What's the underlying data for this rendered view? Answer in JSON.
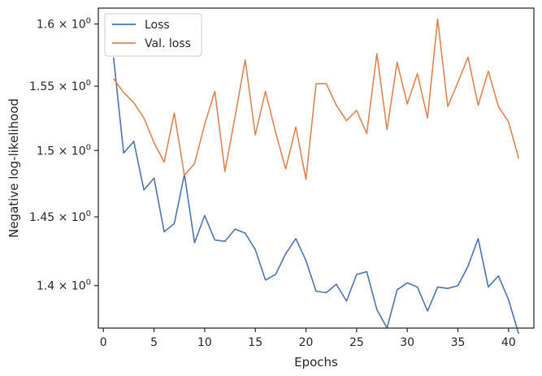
{
  "chart_data": {
    "type": "line",
    "title": "",
    "xlabel": "Epochs",
    "ylabel": "Negative log-likelihood",
    "yscale": "log",
    "xlim": [
      -0.5,
      42.5
    ],
    "ylim": [
      1.37,
      1.613
    ],
    "grid": false,
    "legend_position": "top-left",
    "x_ticks": [
      0,
      5,
      10,
      15,
      20,
      25,
      30,
      35,
      40
    ],
    "x_tick_labels": [
      "0",
      "5",
      "10",
      "15",
      "20",
      "25",
      "30",
      "35",
      "40"
    ],
    "y_ticks": [
      1.4,
      1.45,
      1.5,
      1.55,
      1.6
    ],
    "y_tick_labels": [
      {
        "base": "1.4",
        "sep": " × ",
        "pow": "10",
        "exp": "0"
      },
      {
        "base": "1.45",
        "sep": " × ",
        "pow": "10",
        "exp": "0"
      },
      {
        "base": "1.5",
        "sep": " × ",
        "pow": "10",
        "exp": "0"
      },
      {
        "base": "1.55",
        "sep": " × ",
        "pow": "10",
        "exp": "0"
      },
      {
        "base": "1.6",
        "sep": " × ",
        "pow": "10",
        "exp": "0"
      }
    ],
    "x": [
      1,
      2,
      3,
      4,
      5,
      6,
      7,
      8,
      9,
      10,
      11,
      12,
      13,
      14,
      15,
      16,
      17,
      18,
      19,
      20,
      21,
      22,
      23,
      24,
      25,
      26,
      27,
      28,
      29,
      30,
      31,
      32,
      33,
      34,
      35,
      36,
      37,
      38,
      39,
      40,
      41
    ],
    "series": [
      {
        "name": "Loss",
        "color": "#4c72b0",
        "values": [
          1.573,
          1.498,
          1.507,
          1.47,
          1.479,
          1.439,
          1.445,
          1.482,
          1.431,
          1.451,
          1.433,
          1.432,
          1.441,
          1.438,
          1.426,
          1.404,
          1.408,
          1.423,
          1.434,
          1.418,
          1.396,
          1.395,
          1.401,
          1.389,
          1.408,
          1.41,
          1.383,
          1.37,
          1.397,
          1.402,
          1.399,
          1.382,
          1.399,
          1.398,
          1.4,
          1.414,
          1.434,
          1.399,
          1.407,
          1.39,
          1.366
        ]
      },
      {
        "name": "Val. loss",
        "color": "#dd8452",
        "values": [
          1.556,
          1.545,
          1.537,
          1.525,
          1.506,
          1.491,
          1.529,
          1.481,
          1.49,
          1.52,
          1.546,
          1.484,
          1.526,
          1.571,
          1.512,
          1.546,
          1.514,
          1.486,
          1.518,
          1.478,
          1.552,
          1.552,
          1.535,
          1.523,
          1.531,
          1.513,
          1.576,
          1.516,
          1.569,
          1.536,
          1.56,
          1.525,
          1.604,
          1.534,
          1.553,
          1.573,
          1.535,
          1.562,
          1.534,
          1.522,
          1.494
        ]
      }
    ]
  }
}
